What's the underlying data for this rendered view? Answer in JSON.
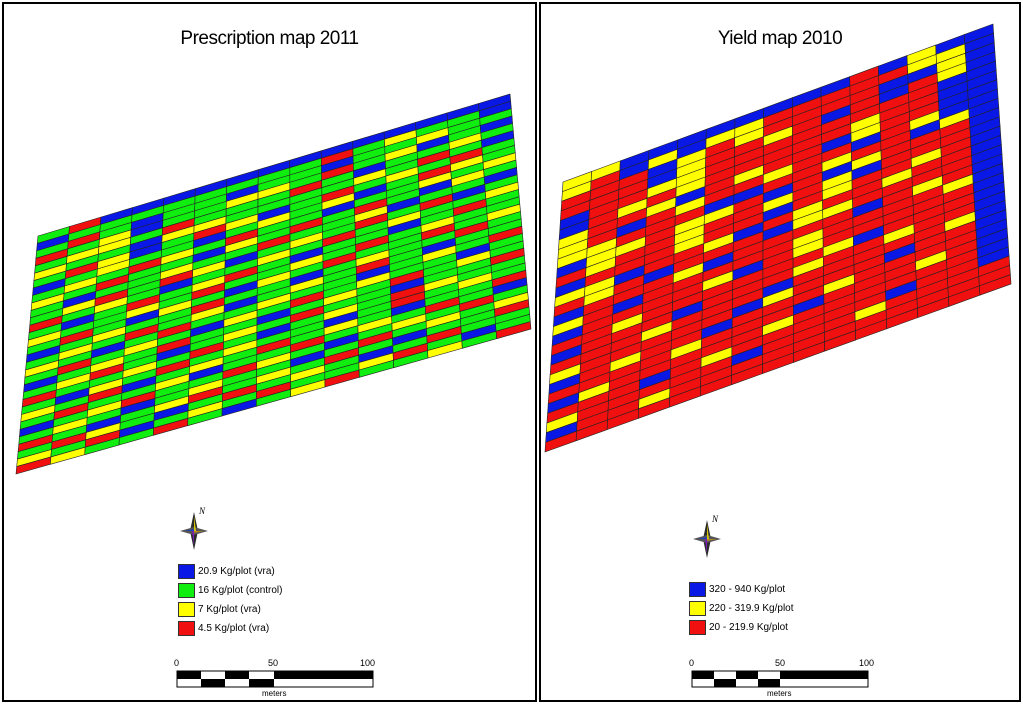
{
  "colors": {
    "blue": "#0a18e6",
    "green": "#10ee10",
    "yellow": "#ffff00",
    "red": "#f01010",
    "grid_line": "#222222"
  },
  "left_map": {
    "title": "Prescription map 2011",
    "legend": [
      {
        "label": "20.9 Kg/plot (vra)",
        "color_key": "B"
      },
      {
        "label": "16 Kg/plot (control)",
        "color_key": "G"
      },
      {
        "label": "7 Kg/plot (vra)",
        "color_key": "Y"
      },
      {
        "label": "4.5 Kg/plot (vra)",
        "color_key": "R"
      }
    ],
    "north_label": "N",
    "scale": {
      "ticks": [
        "0",
        "50",
        "100"
      ],
      "unit": "meters"
    },
    "grid": [
      "GRBBBBBBBBBBBBB",
      "BGGGGGGGGRGYGGB",
      "GRGBGGBGGBGGYGG",
      "RGYBGGYYGRGYBGB",
      "GYYGRGGGRGBGGYG",
      "YGGBYYGGGGYGRGB",
      "GRYBGRYBGRGYGRG",
      "BGYGGBGYGYBGRYG",
      "GYGRYGRGGBGGYGY",
      "YGRGGBYGRGRGBYG",
      "GBGGYGGRGGYBGGB",
      "GYRGRYBGYGRGRBG",
      "RGYGBGGYGRGYGGY",
      "GBGRGYRGBGGBGRG",
      "YGGYGRGGYGRGYGG",
      "GRGBYGBYGRGGRGY",
      "BGYGGRGGBGYGGRG",
      "GYGRGYBGYGRGBGG",
      "YGBGRGGYGGBGYGR",
      "GRGYGBYGRGYGGBG",
      "BGYGRGGBGYGRGYG",
      "GYRGBGYGRGGBGGR",
      "RGGYGRGBGYGRYGG",
      "GBYGRGYGGBGRGYG",
      "YGRBGYGRGYGBGGR",
      "GRGGYBGGRGYGRGB",
      "BGYRGGRYGBGYGRG",
      "GYGBGYGGBGRGYGY",
      "RGBGYRGYGRGBGGR",
      "GRYGBGRGYGBGRGG",
      "YGRBGYGRGGYRGBG",
      "RYGGRGBGYRGGYGR"
    ]
  },
  "right_map": {
    "title": "Yield map 2010",
    "legend": [
      {
        "label": "320 - 940 Kg/plot",
        "color_key": "B"
      },
      {
        "label": "220 - 319.9 Kg/plot",
        "color_key": "Y"
      },
      {
        "label": "20 - 219.9 Kg/plot",
        "color_key": "R"
      }
    ],
    "north_label": "N",
    "scale": {
      "ticks": [
        "0",
        "50",
        "100"
      ],
      "unit": "meters"
    },
    "grid": [
      "YYBBBBBBBBRBYBB",
      "YRBYBYYRRRRRYYB",
      "RRRBYRYRRRRBBYB",
      "RRRBYRRYRBRBRYB",
      "BRRYYRRRRRRRRBB",
      "BRYRYRRRRRYRRBB",
      "YRRYBRYRRBYRRBB",
      "YRBRYRRYRRBRYBB",
      "YYRRRBBRRYRRBYB",
      "BYYRYYRBRBYRRRB",
      "RYRRYRRYRYBRRRB",
      "BRRRYRRBRYRRYRB",
      "YYBRRYBRYRRYRRB",
      "RYRBRRRBYYRRRRB",
      "BRRRYBRRRRBRYRB",
      "YRBRRRRRYRRRRYB",
      "BRRRRYBRYRRRRRB",
      "RRYRRRRRRYBRRRB",
      "BRRRBRRRYRRYRRB",
      "RRRYRRRBRRRRRYB",
      "YRRRRRBYRRRBRRB",
      "BRYRRBRRRYRRRRB",
      "RRRRYRRRBRRRYRB",
      "BYRRRRRYRRRRRRB",
      "RRRBRYRRRRRBRRB",
      "YRRRRRBRRRYRRRR",
      "BRRYRRRRRRRRRRR",
      "RRRRRRRRRRRRRRR"
    ]
  }
}
